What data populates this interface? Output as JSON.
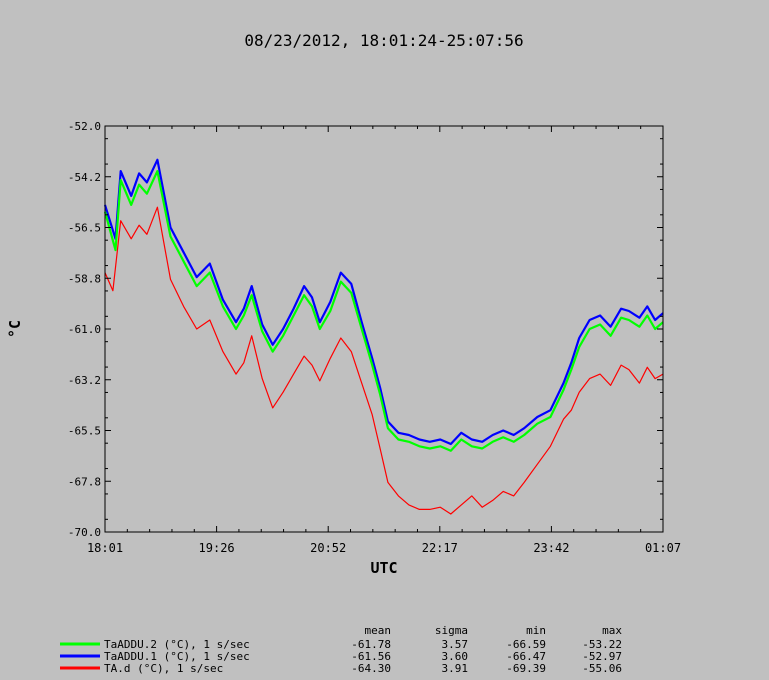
{
  "chart_data": {
    "type": "line",
    "title": "08/23/2012, 18:01:24-25:07:56",
    "xlabel": "UTC",
    "ylabel": "°C",
    "x_ticks": [
      "18:01",
      "19:26",
      "20:52",
      "22:17",
      "23:42",
      "01:07"
    ],
    "y_ticks": [
      "-52.0",
      "-54.2",
      "-56.5",
      "-58.8",
      "-61.0",
      "-63.2",
      "-65.5",
      "-67.8",
      "-70.0"
    ],
    "ylim": [
      -70.0,
      -52.0
    ],
    "xlim_minutes_from_start": [
      0,
      426
    ],
    "grid": false,
    "legend_placement": "bottom",
    "stats_headers": [
      "mean",
      "sigma",
      "min",
      "max"
    ],
    "series": [
      {
        "name": "TaADDU.2 (°C), 1 s/sec",
        "color": "#00ff00",
        "stats": [
          "-61.78",
          "3.57",
          "-66.59",
          "-53.22"
        ],
        "x": [
          0,
          8,
          12,
          20,
          26,
          32,
          40,
          50,
          60,
          70,
          80,
          90,
          100,
          106,
          112,
          120,
          128,
          136,
          144,
          152,
          158,
          164,
          172,
          180,
          188,
          196,
          204,
          210,
          216,
          224,
          232,
          240,
          248,
          256,
          264,
          272,
          280,
          288,
          296,
          304,
          312,
          320,
          330,
          340,
          350,
          356,
          362,
          370,
          378,
          386,
          394,
          400,
          408,
          414,
          420,
          426
        ],
        "y": [
          -55.8,
          -57.5,
          -54.4,
          -55.5,
          -54.6,
          -55.0,
          -54.0,
          -56.9,
          -58.0,
          -59.1,
          -58.5,
          -60.0,
          -61.0,
          -60.4,
          -59.5,
          -61.1,
          -62.0,
          -61.3,
          -60.4,
          -59.5,
          -60.0,
          -61.0,
          -60.2,
          -58.9,
          -59.4,
          -61.0,
          -62.6,
          -63.9,
          -65.4,
          -65.9,
          -66.0,
          -66.2,
          -66.3,
          -66.2,
          -66.4,
          -65.9,
          -66.2,
          -66.3,
          -66.0,
          -65.8,
          -66.0,
          -65.7,
          -65.2,
          -64.9,
          -63.7,
          -62.8,
          -61.8,
          -61.0,
          -60.8,
          -61.3,
          -60.5,
          -60.6,
          -60.9,
          -60.4,
          -61.0,
          -60.7
        ]
      },
      {
        "name": "TaADDU.1 (°C), 1 s/sec",
        "color": "#0000ff",
        "stats": [
          "-61.56",
          "3.60",
          "-66.47",
          "-52.97"
        ],
        "x": [
          0,
          8,
          12,
          20,
          26,
          32,
          40,
          50,
          60,
          70,
          80,
          90,
          100,
          106,
          112,
          120,
          128,
          136,
          144,
          152,
          158,
          164,
          172,
          180,
          188,
          196,
          204,
          210,
          216,
          224,
          232,
          240,
          248,
          256,
          264,
          272,
          280,
          288,
          296,
          304,
          312,
          320,
          330,
          340,
          350,
          356,
          362,
          370,
          378,
          386,
          394,
          400,
          408,
          414,
          420,
          426
        ],
        "y": [
          -55.5,
          -57.0,
          -54.0,
          -55.1,
          -54.1,
          -54.5,
          -53.5,
          -56.5,
          -57.6,
          -58.7,
          -58.1,
          -59.7,
          -60.7,
          -60.1,
          -59.1,
          -60.8,
          -61.7,
          -61.0,
          -60.1,
          -59.1,
          -59.6,
          -60.7,
          -59.8,
          -58.5,
          -59.0,
          -60.7,
          -62.3,
          -63.6,
          -65.1,
          -65.6,
          -65.7,
          -65.9,
          -66.0,
          -65.9,
          -66.1,
          -65.6,
          -65.9,
          -66.0,
          -65.7,
          -65.5,
          -65.7,
          -65.4,
          -64.9,
          -64.6,
          -63.4,
          -62.5,
          -61.4,
          -60.6,
          -60.4,
          -60.9,
          -60.1,
          -60.2,
          -60.5,
          -60.0,
          -60.6,
          -60.3
        ]
      },
      {
        "name": "TA.d (°C), 1 s/sec",
        "color": "#ff0000",
        "stats": [
          "-64.30",
          "3.91",
          "-69.39",
          "-55.06"
        ],
        "x": [
          0,
          6,
          12,
          20,
          26,
          32,
          40,
          50,
          60,
          70,
          80,
          90,
          100,
          106,
          112,
          120,
          128,
          136,
          144,
          152,
          158,
          164,
          172,
          180,
          188,
          196,
          204,
          210,
          216,
          224,
          232,
          240,
          248,
          256,
          264,
          272,
          280,
          288,
          296,
          304,
          312,
          320,
          330,
          340,
          350,
          356,
          362,
          370,
          378,
          386,
          394,
          400,
          408,
          414,
          420,
          426
        ],
        "y": [
          -58.5,
          -59.3,
          -56.2,
          -57.0,
          -56.4,
          -56.8,
          -55.6,
          -58.8,
          -60.0,
          -61.0,
          -60.6,
          -62.0,
          -63.0,
          -62.5,
          -61.3,
          -63.2,
          -64.5,
          -63.8,
          -63.0,
          -62.2,
          -62.6,
          -63.3,
          -62.3,
          -61.4,
          -62.0,
          -63.4,
          -64.8,
          -66.3,
          -67.8,
          -68.4,
          -68.8,
          -69.0,
          -69.0,
          -68.9,
          -69.2,
          -68.8,
          -68.4,
          -68.9,
          -68.6,
          -68.2,
          -68.4,
          -67.8,
          -67.0,
          -66.2,
          -65.0,
          -64.6,
          -63.8,
          -63.2,
          -63.0,
          -63.5,
          -62.6,
          -62.8,
          -63.4,
          -62.7,
          -63.2,
          -63.0
        ]
      }
    ]
  }
}
